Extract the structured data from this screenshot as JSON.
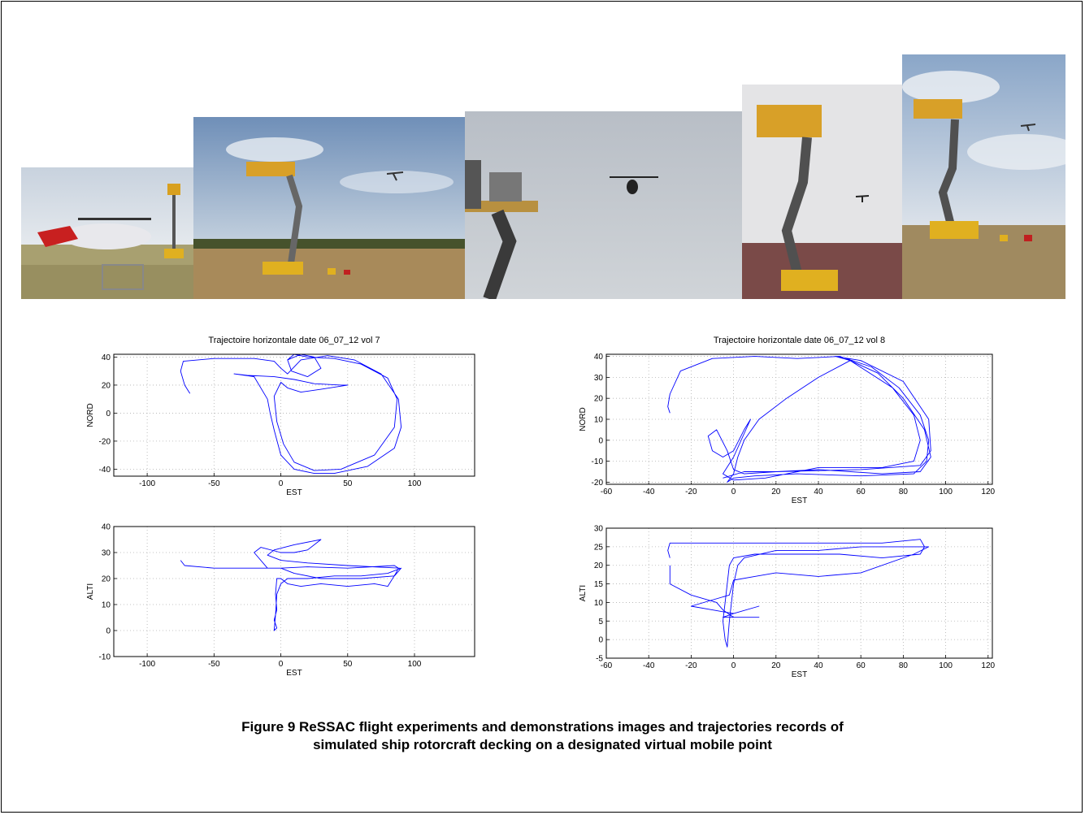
{
  "caption": {
    "line1": "Figure 9  ReSSAC flight experiments and demonstrations images and trajectories records of",
    "line2": "simulated ship rotorcraft decking on a designated virtual mobile point"
  },
  "photos": [
    {
      "icon": "helicopter-on-ground-photo"
    },
    {
      "icon": "lift-platform-field-photo"
    },
    {
      "icon": "helicopter-hover-sky-photo"
    },
    {
      "icon": "lift-platform-close-photo"
    },
    {
      "icon": "lift-platform-sky-photo"
    }
  ],
  "colors": {
    "trajectory": "#0000ff",
    "grid": "#b0b0b0",
    "axis": "#000000"
  },
  "chart_data": [
    {
      "type": "line",
      "title": "Trajectoire  horizontale date 06_07_12 vol 7",
      "xlabel": "EST",
      "ylabel": "NORD",
      "xlim": [
        -125,
        145
      ],
      "ylim": [
        -45,
        42
      ],
      "xticks": [
        -100,
        -50,
        0,
        50,
        100
      ],
      "yticks": [
        -40,
        -20,
        0,
        20,
        40
      ],
      "xtick_labels": [
        "-100",
        "-50",
        "0",
        "50",
        "100"
      ],
      "ytick_labels": [
        "-40",
        "-20",
        "0",
        "20",
        "40"
      ],
      "grid": true,
      "series": [
        {
          "color": "#0000ff",
          "points": [
            [
              -68,
              14
            ],
            [
              -72,
              20
            ],
            [
              -75,
              30
            ],
            [
              -73,
              37
            ],
            [
              -50,
              39
            ],
            [
              -20,
              39
            ],
            [
              -5,
              37
            ],
            [
              0,
              32
            ],
            [
              5,
              28
            ],
            [
              15,
              38
            ],
            [
              35,
              41
            ],
            [
              55,
              38
            ],
            [
              75,
              28
            ],
            [
              88,
              10
            ],
            [
              90,
              -10
            ],
            [
              85,
              -25
            ],
            [
              65,
              -38
            ],
            [
              40,
              -43
            ],
            [
              25,
              -43
            ],
            [
              10,
              -40
            ],
            [
              0,
              -30
            ],
            [
              -5,
              -12
            ],
            [
              -8,
              0
            ],
            [
              -10,
              10
            ],
            [
              -20,
              26
            ],
            [
              -35,
              28
            ],
            [
              -25,
              27
            ],
            [
              -5,
              26
            ],
            [
              10,
              24
            ],
            [
              25,
              21
            ],
            [
              45,
              20
            ],
            [
              50,
              20
            ],
            [
              30,
              17
            ],
            [
              15,
              15
            ],
            [
              5,
              18
            ],
            [
              0,
              22
            ],
            [
              -5,
              12
            ],
            [
              -3,
              -6
            ],
            [
              2,
              -22
            ],
            [
              10,
              -35
            ],
            [
              25,
              -41
            ],
            [
              45,
              -40
            ],
            [
              70,
              -30
            ],
            [
              85,
              -10
            ],
            [
              87,
              10
            ],
            [
              80,
              25
            ],
            [
              60,
              35
            ],
            [
              40,
              39
            ],
            [
              20,
              40
            ],
            [
              10,
              42
            ],
            [
              5,
              38
            ],
            [
              8,
              30
            ],
            [
              20,
              26
            ],
            [
              30,
              32
            ],
            [
              25,
              40
            ],
            [
              15,
              42
            ],
            [
              5,
              38
            ]
          ]
        }
      ]
    },
    {
      "type": "line",
      "title": "Trajectoire  horizontale date 06_07_12 vol 8",
      "xlabel": "EST",
      "ylabel": "NORD",
      "xlim": [
        -60,
        122
      ],
      "ylim": [
        -21,
        41
      ],
      "xticks": [
        -60,
        -40,
        -20,
        0,
        20,
        40,
        60,
        80,
        100,
        120
      ],
      "yticks": [
        -20,
        -10,
        0,
        10,
        20,
        30,
        40
      ],
      "xtick_labels": [
        "-60",
        "-40",
        "-20",
        "0",
        "20",
        "40",
        "60",
        "80",
        "100",
        "120"
      ],
      "ytick_labels": [
        "-20",
        "-10",
        "0",
        "10",
        "20",
        "30",
        "40"
      ],
      "grid": true,
      "series": [
        {
          "color": "#0000ff",
          "points": [
            [
              -30,
              13
            ],
            [
              -31,
              16
            ],
            [
              -30,
              22
            ],
            [
              -25,
              33
            ],
            [
              -10,
              39
            ],
            [
              10,
              40
            ],
            [
              30,
              39
            ],
            [
              50,
              40
            ],
            [
              65,
              35
            ],
            [
              78,
              25
            ],
            [
              88,
              12
            ],
            [
              92,
              0
            ],
            [
              91,
              -10
            ],
            [
              85,
              -16
            ],
            [
              60,
              -17
            ],
            [
              30,
              -16
            ],
            [
              10,
              -17
            ],
            [
              0,
              -18
            ],
            [
              -3,
              -20
            ],
            [
              0,
              -16
            ],
            [
              2,
              -8
            ],
            [
              5,
              0
            ],
            [
              12,
              10
            ],
            [
              25,
              20
            ],
            [
              40,
              30
            ],
            [
              55,
              38
            ],
            [
              68,
              32
            ],
            [
              80,
              20
            ],
            [
              90,
              5
            ],
            [
              93,
              -8
            ],
            [
              88,
              -15
            ],
            [
              70,
              -16
            ],
            [
              40,
              -14
            ],
            [
              20,
              -15
            ],
            [
              5,
              -16
            ],
            [
              0,
              -14
            ],
            [
              -3,
              -5
            ],
            [
              -8,
              5
            ],
            [
              -12,
              2
            ],
            [
              -10,
              -5
            ],
            [
              -5,
              -8
            ],
            [
              0,
              -5
            ],
            [
              5,
              5
            ],
            [
              8,
              10
            ],
            [
              0,
              -8
            ],
            [
              -5,
              -16
            ],
            [
              0,
              -19
            ],
            [
              15,
              -18
            ],
            [
              40,
              -13
            ],
            [
              70,
              -13
            ],
            [
              85,
              -10
            ],
            [
              88,
              0
            ],
            [
              85,
              12
            ],
            [
              75,
              25
            ],
            [
              55,
              38
            ],
            [
              48,
              40
            ],
            [
              60,
              38
            ],
            [
              80,
              28
            ],
            [
              92,
              10
            ],
            [
              93,
              -5
            ],
            [
              88,
              -12
            ],
            [
              60,
              -14
            ],
            [
              20,
              -15
            ],
            [
              5,
              -15
            ],
            [
              -5,
              -18
            ]
          ]
        }
      ]
    },
    {
      "type": "line",
      "title": "",
      "xlabel": "EST",
      "ylabel": "ALTI",
      "xlim": [
        -125,
        145
      ],
      "ylim": [
        -10,
        40
      ],
      "xticks": [
        -100,
        -50,
        0,
        50,
        100
      ],
      "yticks": [
        -10,
        0,
        10,
        20,
        30,
        40
      ],
      "xtick_labels": [
        "-100",
        "-50",
        "0",
        "50",
        "100"
      ],
      "ytick_labels": [
        "-10",
        "0",
        "10",
        "20",
        "30",
        "40"
      ],
      "grid": true,
      "series": [
        {
          "color": "#0000ff",
          "points": [
            [
              -75,
              27
            ],
            [
              -72,
              25
            ],
            [
              -50,
              24
            ],
            [
              -20,
              24
            ],
            [
              0,
              24
            ],
            [
              20,
              24.5
            ],
            [
              50,
              24
            ],
            [
              85,
              25
            ],
            [
              88,
              24
            ],
            [
              86,
              22
            ],
            [
              80,
              17
            ],
            [
              70,
              18
            ],
            [
              50,
              17
            ],
            [
              30,
              18
            ],
            [
              15,
              17
            ],
            [
              5,
              18
            ],
            [
              0,
              20
            ],
            [
              -3,
              20
            ],
            [
              -4,
              14
            ],
            [
              -3,
              8
            ],
            [
              -5,
              4
            ],
            [
              -3,
              1
            ],
            [
              -5,
              0
            ],
            [
              -4,
              6
            ],
            [
              -3,
              14
            ],
            [
              0,
              18
            ],
            [
              5,
              20
            ],
            [
              20,
              20
            ],
            [
              40,
              21
            ],
            [
              60,
              21
            ],
            [
              80,
              22
            ],
            [
              90,
              24
            ],
            [
              85,
              21
            ],
            [
              60,
              20
            ],
            [
              30,
              20
            ],
            [
              10,
              22
            ],
            [
              0,
              24
            ],
            [
              -10,
              24
            ],
            [
              -20,
              30
            ],
            [
              -15,
              32
            ],
            [
              0,
              30
            ],
            [
              10,
              30
            ],
            [
              20,
              31
            ],
            [
              30,
              35
            ],
            [
              10,
              33
            ],
            [
              -5,
              31
            ],
            [
              -10,
              29
            ],
            [
              0,
              27
            ],
            [
              20,
              26
            ],
            [
              50,
              25
            ],
            [
              89,
              24
            ]
          ]
        }
      ]
    },
    {
      "type": "line",
      "title": "",
      "xlabel": "EST",
      "ylabel": "ALTI",
      "xlim": [
        -60,
        122
      ],
      "ylim": [
        -5,
        30
      ],
      "xticks": [
        -60,
        -40,
        -20,
        0,
        20,
        40,
        60,
        80,
        100,
        120
      ],
      "yticks": [
        -5,
        0,
        5,
        10,
        15,
        20,
        25,
        30
      ],
      "xtick_labels": [
        "-60",
        "-40",
        "-20",
        "0",
        "20",
        "40",
        "60",
        "80",
        "100",
        "120"
      ],
      "ytick_labels": [
        "-5",
        "0",
        "5",
        "10",
        "15",
        "20",
        "25",
        "30"
      ],
      "grid": true,
      "series": [
        {
          "color": "#0000ff",
          "points": [
            [
              -30,
              22
            ],
            [
              -31,
              24
            ],
            [
              -30,
              26
            ],
            [
              -10,
              26
            ],
            [
              10,
              26
            ],
            [
              30,
              26
            ],
            [
              50,
              26
            ],
            [
              70,
              26
            ],
            [
              88,
              27
            ],
            [
              90,
              25
            ],
            [
              88,
              23
            ],
            [
              70,
              22
            ],
            [
              50,
              23
            ],
            [
              30,
              23
            ],
            [
              10,
              23
            ],
            [
              0,
              22
            ],
            [
              -2,
              20
            ],
            [
              -3,
              15
            ],
            [
              -4,
              10
            ],
            [
              -5,
              5
            ],
            [
              -4,
              0
            ],
            [
              -3,
              -2
            ],
            [
              -2,
              5
            ],
            [
              0,
              15
            ],
            [
              2,
              20
            ],
            [
              5,
              22
            ],
            [
              20,
              24
            ],
            [
              40,
              24
            ],
            [
              60,
              25
            ],
            [
              80,
              25
            ],
            [
              92,
              25
            ],
            [
              85,
              23
            ],
            [
              60,
              18
            ],
            [
              40,
              17
            ],
            [
              20,
              18
            ],
            [
              10,
              17
            ],
            [
              0,
              16
            ],
            [
              -2,
              12
            ],
            [
              -20,
              9
            ],
            [
              -10,
              8
            ],
            [
              0,
              7
            ],
            [
              12,
              9
            ],
            [
              0,
              7
            ],
            [
              -5,
              6
            ],
            [
              0,
              6
            ],
            [
              12,
              6
            ],
            [
              0,
              6
            ],
            [
              -5,
              8
            ],
            [
              -8,
              10
            ],
            [
              -20,
              12
            ],
            [
              -30,
              15
            ],
            [
              -30,
              20
            ]
          ]
        }
      ]
    }
  ]
}
